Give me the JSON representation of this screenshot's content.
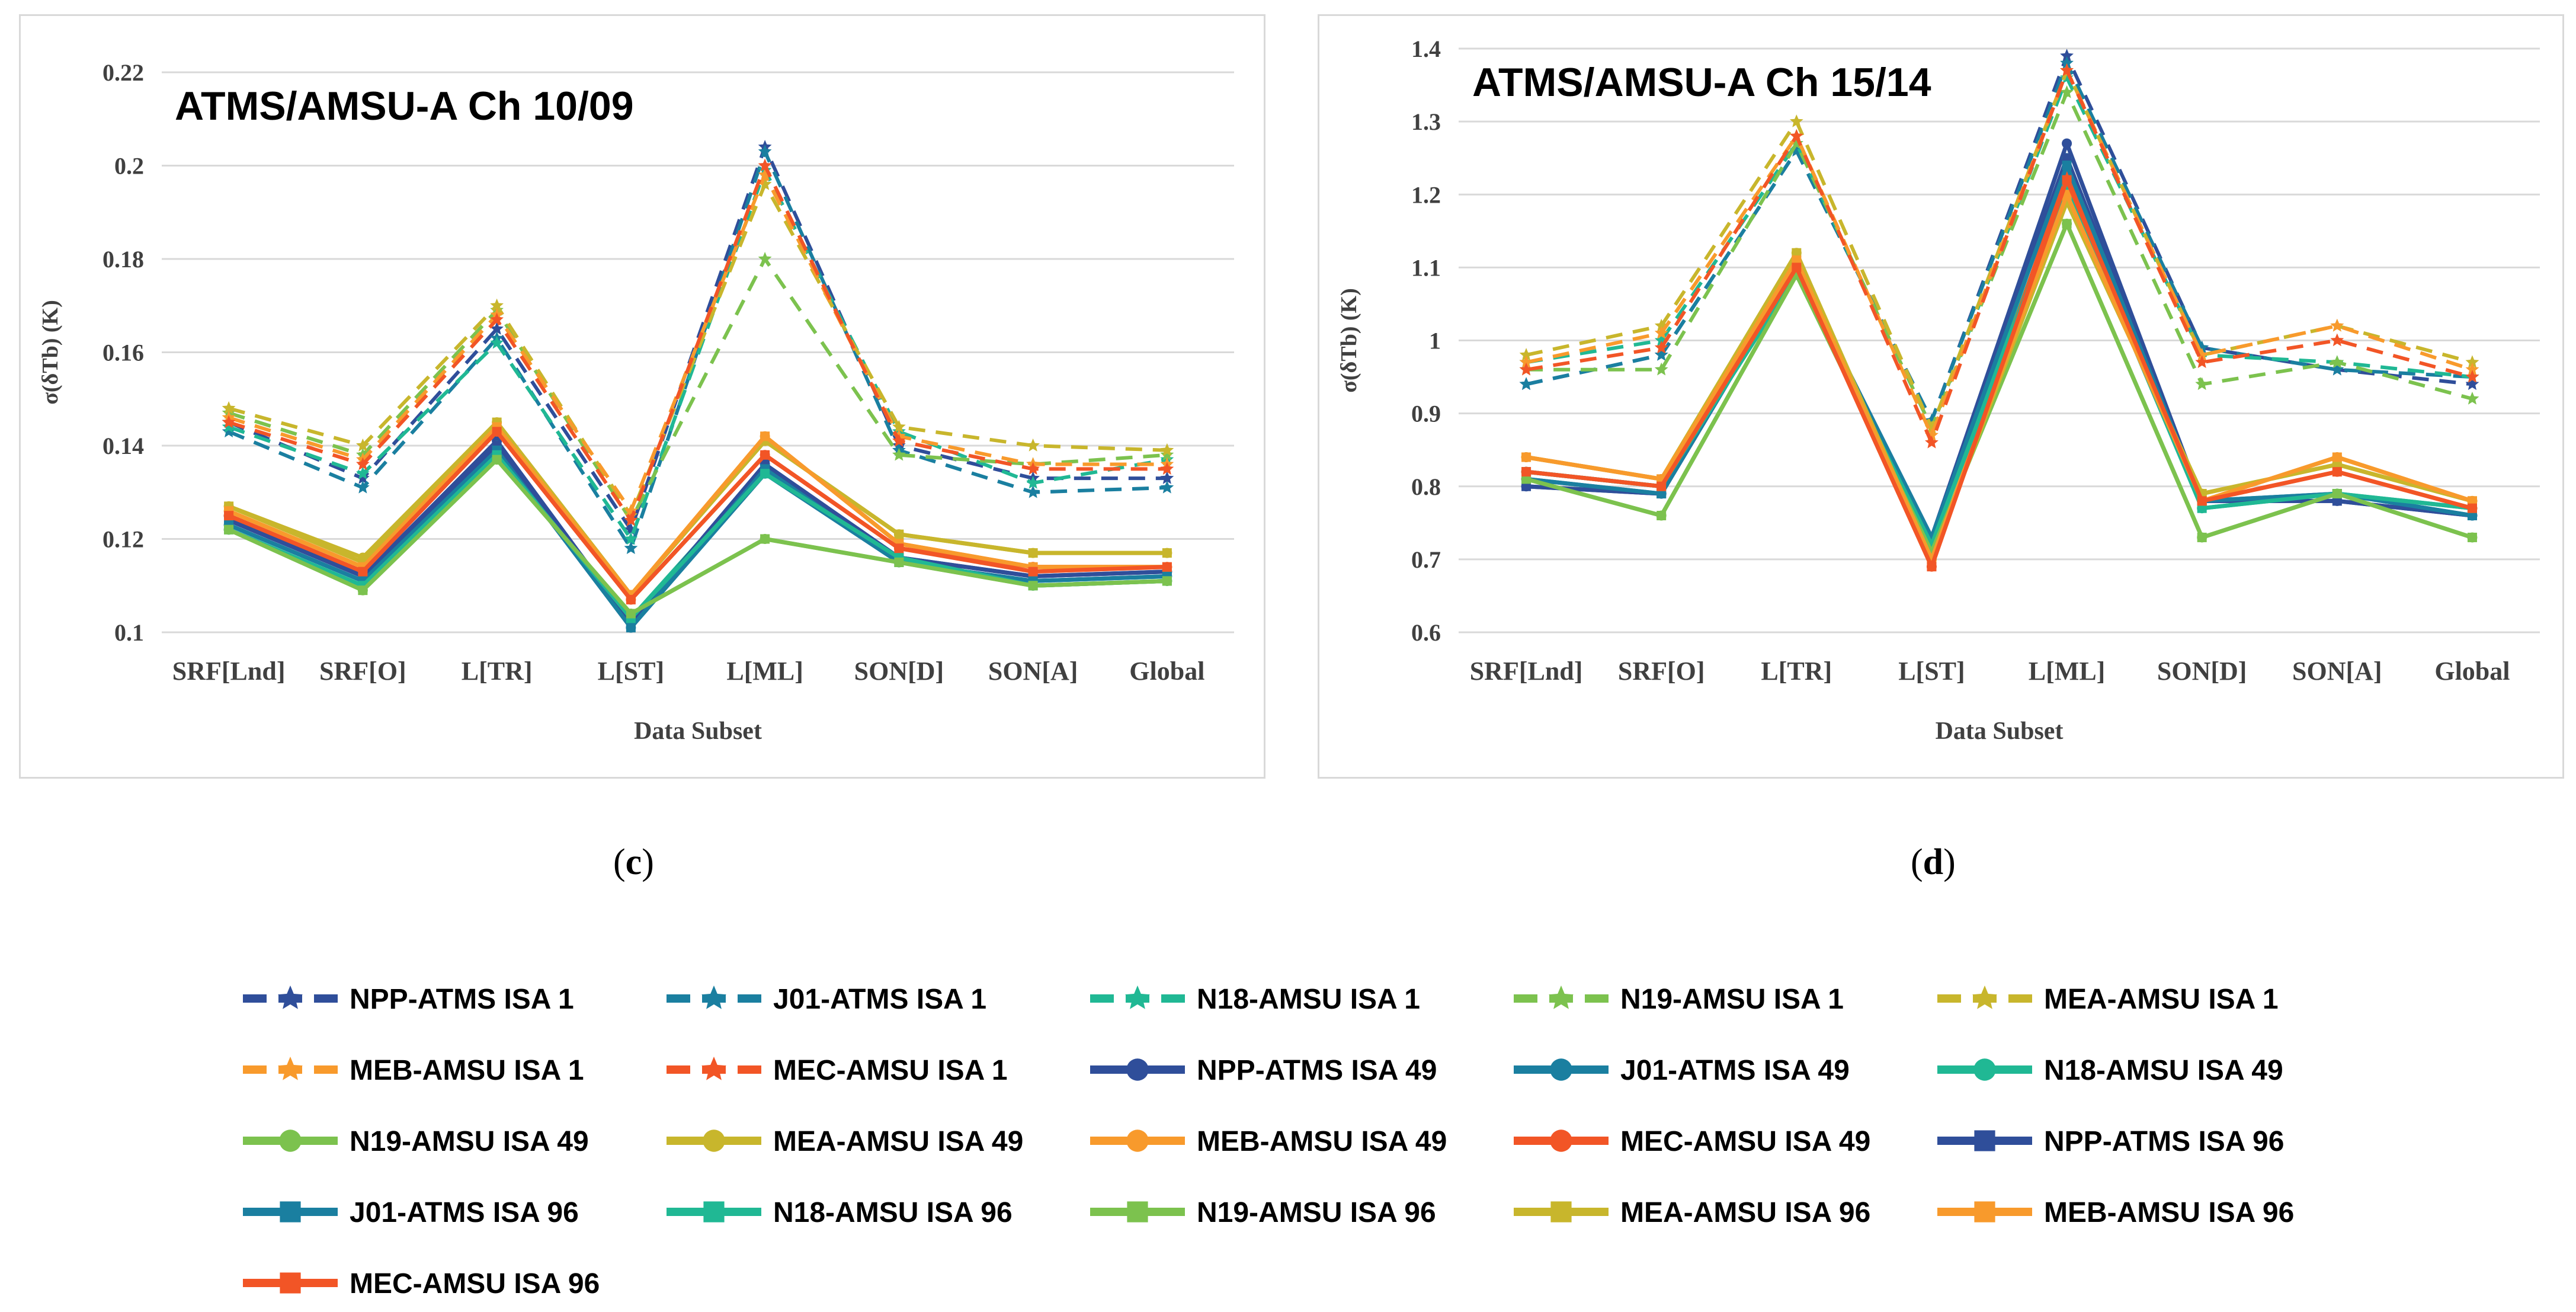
{
  "legend_series": [
    {
      "name": "NPP-ATMS ISA 1",
      "color": "#2f4e9a",
      "style": "dash",
      "marker": "star"
    },
    {
      "name": "J01-ATMS ISA 1",
      "color": "#1a7fa0",
      "style": "dash",
      "marker": "star"
    },
    {
      "name": "N18-AMSU ISA 1",
      "color": "#20b894",
      "style": "dash",
      "marker": "star"
    },
    {
      "name": "N19-AMSU ISA 1",
      "color": "#7cc24e",
      "style": "dash",
      "marker": "star"
    },
    {
      "name": "MEA-AMSU ISA 1",
      "color": "#c8b62c",
      "style": "dash",
      "marker": "star"
    },
    {
      "name": "MEB-AMSU ISA 1",
      "color": "#f89a2c",
      "style": "dash",
      "marker": "star"
    },
    {
      "name": "MEC-AMSU ISA 1",
      "color": "#f25526",
      "style": "dash",
      "marker": "star"
    },
    {
      "name": "NPP-ATMS ISA 49",
      "color": "#2f4e9a",
      "style": "solid",
      "marker": "circle"
    },
    {
      "name": "J01-ATMS ISA 49",
      "color": "#1a7fa0",
      "style": "solid",
      "marker": "circle"
    },
    {
      "name": "N18-AMSU ISA 49",
      "color": "#20b894",
      "style": "solid",
      "marker": "circle"
    },
    {
      "name": "N19-AMSU ISA 49",
      "color": "#7cc24e",
      "style": "solid",
      "marker": "circle"
    },
    {
      "name": "MEA-AMSU ISA 49",
      "color": "#c8b62c",
      "style": "solid",
      "marker": "circle"
    },
    {
      "name": "MEB-AMSU ISA 49",
      "color": "#f89a2c",
      "style": "solid",
      "marker": "circle"
    },
    {
      "name": "MEC-AMSU ISA 49",
      "color": "#f25526",
      "style": "solid",
      "marker": "circle"
    },
    {
      "name": "NPP-ATMS ISA 96",
      "color": "#2f4e9a",
      "style": "solid",
      "marker": "square"
    },
    {
      "name": "J01-ATMS ISA 96",
      "color": "#1a7fa0",
      "style": "solid",
      "marker": "square"
    },
    {
      "name": "N18-AMSU ISA 96",
      "color": "#20b894",
      "style": "solid",
      "marker": "square"
    },
    {
      "name": "N19-AMSU ISA 96",
      "color": "#7cc24e",
      "style": "solid",
      "marker": "square"
    },
    {
      "name": "MEA-AMSU ISA 96",
      "color": "#c8b62c",
      "style": "solid",
      "marker": "square"
    },
    {
      "name": "MEB-AMSU ISA 96",
      "color": "#f89a2c",
      "style": "solid",
      "marker": "square"
    },
    {
      "name": "MEC-AMSU ISA 96",
      "color": "#f25526",
      "style": "solid",
      "marker": "square"
    }
  ],
  "captions": {
    "c": {
      "open": "(",
      "letter": "c",
      "close": ")"
    },
    "d": {
      "open": "(",
      "letter": "d",
      "close": ")"
    }
  },
  "chart_data": [
    {
      "id": "c",
      "type": "line",
      "title": "ATMS/AMSU-A Ch 10/09",
      "xlabel": "Data Subset",
      "ylabel": "σ(δTb) (K)",
      "categories": [
        "SRF[Lnd]",
        "SRF[O]",
        "L[TR]",
        "L[ST]",
        "L[ML]",
        "SON[D]",
        "SON[A]",
        "Global"
      ],
      "ylim": [
        0.1,
        0.22
      ],
      "yticks": [
        0.1,
        0.12,
        0.14,
        0.16,
        0.18,
        0.2,
        0.22
      ],
      "ytick_labels": [
        "0.1",
        "0.12",
        "0.14",
        "0.16",
        "0.18",
        "0.2",
        "0.22"
      ],
      "grid": true,
      "series": [
        {
          "name": "NPP-ATMS ISA 1",
          "values": [
            0.145,
            0.133,
            0.165,
            0.122,
            0.204,
            0.14,
            0.133,
            0.133
          ]
        },
        {
          "name": "J01-ATMS ISA 1",
          "values": [
            0.143,
            0.131,
            0.163,
            0.118,
            0.203,
            0.139,
            0.13,
            0.131
          ]
        },
        {
          "name": "N18-AMSU ISA 1",
          "values": [
            0.144,
            0.134,
            0.162,
            0.12,
            0.199,
            0.143,
            0.132,
            0.137
          ]
        },
        {
          "name": "N19-AMSU ISA 1",
          "values": [
            0.147,
            0.138,
            0.169,
            0.124,
            0.18,
            0.138,
            0.136,
            0.138
          ]
        },
        {
          "name": "MEA-AMSU ISA 1",
          "values": [
            0.148,
            0.14,
            0.17,
            0.125,
            0.196,
            0.144,
            0.14,
            0.139
          ]
        },
        {
          "name": "MEB-AMSU ISA 1",
          "values": [
            0.146,
            0.137,
            0.168,
            0.126,
            0.198,
            0.142,
            0.136,
            0.136
          ]
        },
        {
          "name": "MEC-AMSU ISA 1",
          "values": [
            0.145,
            0.136,
            0.167,
            0.124,
            0.2,
            0.141,
            0.135,
            0.135
          ]
        },
        {
          "name": "NPP-ATMS ISA 49",
          "values": [
            0.125,
            0.112,
            0.141,
            0.102,
            0.136,
            0.116,
            0.112,
            0.113
          ]
        },
        {
          "name": "J01-ATMS ISA 49",
          "values": [
            0.123,
            0.111,
            0.14,
            0.101,
            0.134,
            0.115,
            0.111,
            0.112
          ]
        },
        {
          "name": "N18-AMSU ISA 49",
          "values": [
            0.122,
            0.11,
            0.138,
            0.103,
            0.135,
            0.116,
            0.11,
            0.111
          ]
        },
        {
          "name": "N19-AMSU ISA 49",
          "values": [
            0.122,
            0.109,
            0.137,
            0.104,
            0.12,
            0.115,
            0.11,
            0.111
          ]
        },
        {
          "name": "MEA-AMSU ISA 49",
          "values": [
            0.127,
            0.116,
            0.145,
            0.108,
            0.141,
            0.121,
            0.117,
            0.117
          ]
        },
        {
          "name": "MEB-AMSU ISA 49",
          "values": [
            0.126,
            0.114,
            0.144,
            0.108,
            0.142,
            0.119,
            0.114,
            0.114
          ]
        },
        {
          "name": "MEC-AMSU ISA 49",
          "values": [
            0.125,
            0.113,
            0.143,
            0.107,
            0.138,
            0.118,
            0.114,
            0.114
          ]
        },
        {
          "name": "NPP-ATMS ISA 96",
          "values": [
            0.124,
            0.112,
            0.14,
            0.102,
            0.136,
            0.116,
            0.112,
            0.113
          ]
        },
        {
          "name": "J01-ATMS ISA 96",
          "values": [
            0.123,
            0.111,
            0.139,
            0.101,
            0.135,
            0.115,
            0.111,
            0.112
          ]
        },
        {
          "name": "N18-AMSU ISA 96",
          "values": [
            0.122,
            0.11,
            0.138,
            0.103,
            0.134,
            0.116,
            0.11,
            0.111
          ]
        },
        {
          "name": "N19-AMSU ISA 96",
          "values": [
            0.122,
            0.109,
            0.137,
            0.104,
            0.12,
            0.115,
            0.11,
            0.111
          ]
        },
        {
          "name": "MEA-AMSU ISA 96",
          "values": [
            0.127,
            0.115,
            0.145,
            0.108,
            0.141,
            0.121,
            0.117,
            0.117
          ]
        },
        {
          "name": "MEB-AMSU ISA 96",
          "values": [
            0.126,
            0.114,
            0.144,
            0.108,
            0.142,
            0.119,
            0.114,
            0.114
          ]
        },
        {
          "name": "MEC-AMSU ISA 96",
          "values": [
            0.125,
            0.113,
            0.143,
            0.107,
            0.138,
            0.118,
            0.113,
            0.114
          ]
        }
      ]
    },
    {
      "id": "d",
      "type": "line",
      "title": "ATMS/AMSU-A Ch 15/14",
      "xlabel": "Data Subset",
      "ylabel": "σ(δTb) (K)",
      "categories": [
        "SRF[Lnd]",
        "SRF[O]",
        "L[TR]",
        "L[ST]",
        "L[ML]",
        "SON[D]",
        "SON[A]",
        "Global"
      ],
      "ylim": [
        0.6,
        1.4
      ],
      "yticks": [
        0.6,
        0.7,
        0.8,
        0.9,
        1.0,
        1.1,
        1.2,
        1.3,
        1.4
      ],
      "ytick_labels": [
        "0.6",
        "0.7",
        "0.8",
        "0.9",
        "1",
        "1.1",
        "1.2",
        "1.3",
        "1.4"
      ],
      "grid": true,
      "series": [
        {
          "name": "NPP-ATMS ISA 1",
          "values": [
            0.94,
            0.98,
            1.26,
            0.89,
            1.39,
            0.99,
            0.96,
            0.94
          ]
        },
        {
          "name": "J01-ATMS ISA 1",
          "values": [
            0.94,
            0.98,
            1.26,
            0.89,
            1.38,
            0.99,
            0.96,
            0.95
          ]
        },
        {
          "name": "N18-AMSU ISA 1",
          "values": [
            0.97,
            1.0,
            1.27,
            0.88,
            1.36,
            0.98,
            0.97,
            0.95
          ]
        },
        {
          "name": "N19-AMSU ISA 1",
          "values": [
            0.96,
            0.96,
            1.27,
            0.88,
            1.34,
            0.94,
            0.97,
            0.92
          ]
        },
        {
          "name": "MEA-AMSU ISA 1",
          "values": [
            0.98,
            1.02,
            1.3,
            0.88,
            1.37,
            0.98,
            1.02,
            0.97
          ]
        },
        {
          "name": "MEB-AMSU ISA 1",
          "values": [
            0.97,
            1.01,
            1.28,
            0.87,
            1.37,
            0.98,
            1.02,
            0.96
          ]
        },
        {
          "name": "MEC-AMSU ISA 1",
          "values": [
            0.96,
            0.99,
            1.28,
            0.86,
            1.37,
            0.97,
            1.0,
            0.95
          ]
        },
        {
          "name": "NPP-ATMS ISA 49",
          "values": [
            0.8,
            0.79,
            1.1,
            0.73,
            1.27,
            0.78,
            0.78,
            0.76
          ]
        },
        {
          "name": "J01-ATMS ISA 49",
          "values": [
            0.81,
            0.79,
            1.1,
            0.73,
            1.25,
            0.78,
            0.79,
            0.76
          ]
        },
        {
          "name": "N18-AMSU ISA 49",
          "values": [
            0.82,
            0.8,
            1.09,
            0.72,
            1.22,
            0.77,
            0.79,
            0.77
          ]
        },
        {
          "name": "N19-AMSU ISA 49",
          "values": [
            0.81,
            0.76,
            1.09,
            0.71,
            1.16,
            0.73,
            0.79,
            0.73
          ]
        },
        {
          "name": "MEA-AMSU ISA 49",
          "values": [
            0.84,
            0.81,
            1.12,
            0.7,
            1.19,
            0.79,
            0.83,
            0.78
          ]
        },
        {
          "name": "MEB-AMSU ISA 49",
          "values": [
            0.84,
            0.81,
            1.11,
            0.7,
            1.21,
            0.78,
            0.84,
            0.78
          ]
        },
        {
          "name": "MEC-AMSU ISA 49",
          "values": [
            0.82,
            0.8,
            1.1,
            0.69,
            1.23,
            0.78,
            0.82,
            0.77
          ]
        },
        {
          "name": "NPP-ATMS ISA 96",
          "values": [
            0.8,
            0.79,
            1.1,
            0.73,
            1.25,
            0.78,
            0.78,
            0.76
          ]
        },
        {
          "name": "J01-ATMS ISA 96",
          "values": [
            0.81,
            0.79,
            1.1,
            0.73,
            1.24,
            0.78,
            0.79,
            0.76
          ]
        },
        {
          "name": "N18-AMSU ISA 96",
          "values": [
            0.82,
            0.8,
            1.09,
            0.72,
            1.21,
            0.77,
            0.79,
            0.77
          ]
        },
        {
          "name": "N19-AMSU ISA 96",
          "values": [
            0.81,
            0.76,
            1.09,
            0.71,
            1.16,
            0.73,
            0.79,
            0.73
          ]
        },
        {
          "name": "MEA-AMSU ISA 96",
          "values": [
            0.84,
            0.81,
            1.12,
            0.7,
            1.19,
            0.79,
            0.83,
            0.78
          ]
        },
        {
          "name": "MEB-AMSU ISA 96",
          "values": [
            0.84,
            0.81,
            1.11,
            0.7,
            1.2,
            0.78,
            0.84,
            0.78
          ]
        },
        {
          "name": "MEC-AMSU ISA 96",
          "values": [
            0.82,
            0.8,
            1.1,
            0.69,
            1.22,
            0.78,
            0.82,
            0.77
          ]
        }
      ]
    }
  ]
}
